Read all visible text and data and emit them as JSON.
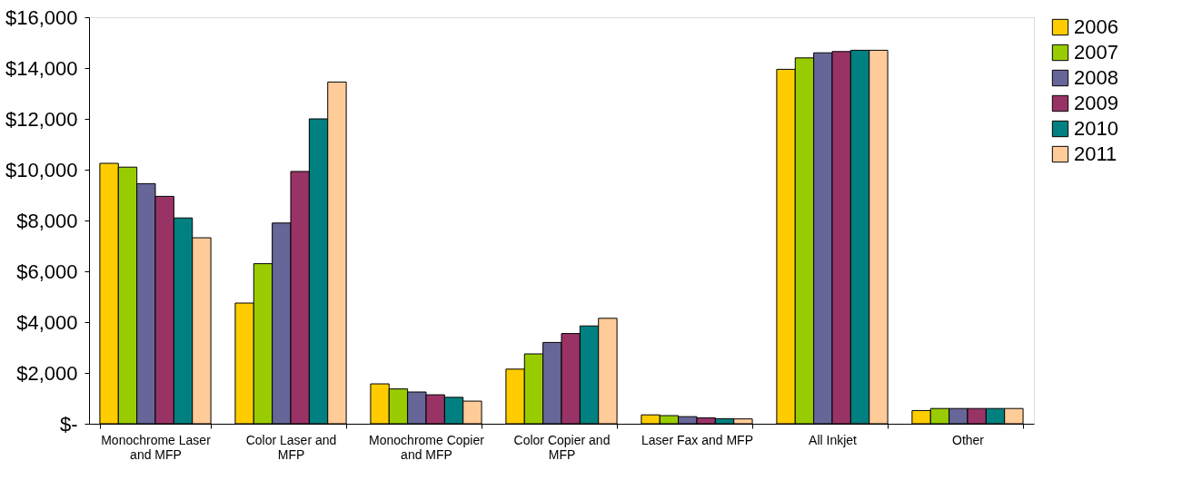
{
  "chart_data": {
    "type": "bar",
    "categories": [
      "Monochrome Laser and MFP",
      "Color Laser and MFP",
      "Monochrome Copier and MFP",
      "Color Copier and MFP",
      "Laser Fax and MFP",
      "All Inkjet",
      "Other"
    ],
    "series": [
      {
        "name": "2006",
        "color": "#ffcc00",
        "values": [
          10250,
          4750,
          1570,
          2150,
          350,
          13950,
          520
        ]
      },
      {
        "name": "2007",
        "color": "#99cc00",
        "values": [
          10100,
          6300,
          1370,
          2750,
          320,
          14400,
          600
        ]
      },
      {
        "name": "2008",
        "color": "#666699",
        "values": [
          9450,
          7900,
          1250,
          3200,
          280,
          14600,
          600
        ]
      },
      {
        "name": "2009",
        "color": "#993366",
        "values": [
          8950,
          9930,
          1140,
          3550,
          230,
          14650,
          600
        ]
      },
      {
        "name": "2010",
        "color": "#008080",
        "values": [
          8100,
          12000,
          1040,
          3850,
          200,
          14700,
          600
        ]
      },
      {
        "name": "2011",
        "color": "#ffcc99",
        "values": [
          7320,
          13450,
          890,
          4150,
          190,
          14700,
          600
        ]
      }
    ],
    "ylim": [
      0,
      16000
    ],
    "yticks": [
      {
        "value": 0,
        "label": "$-"
      },
      {
        "value": 2000,
        "label": "$2,000"
      },
      {
        "value": 4000,
        "label": "$4,000"
      },
      {
        "value": 6000,
        "label": "$6,000"
      },
      {
        "value": 8000,
        "label": "$8,000"
      },
      {
        "value": 10000,
        "label": "$10,000"
      },
      {
        "value": 12000,
        "label": "$12,000"
      },
      {
        "value": 14000,
        "label": "$14,000"
      },
      {
        "value": 16000,
        "label": "$16,000"
      }
    ],
    "grid": false,
    "legend": "right"
  }
}
